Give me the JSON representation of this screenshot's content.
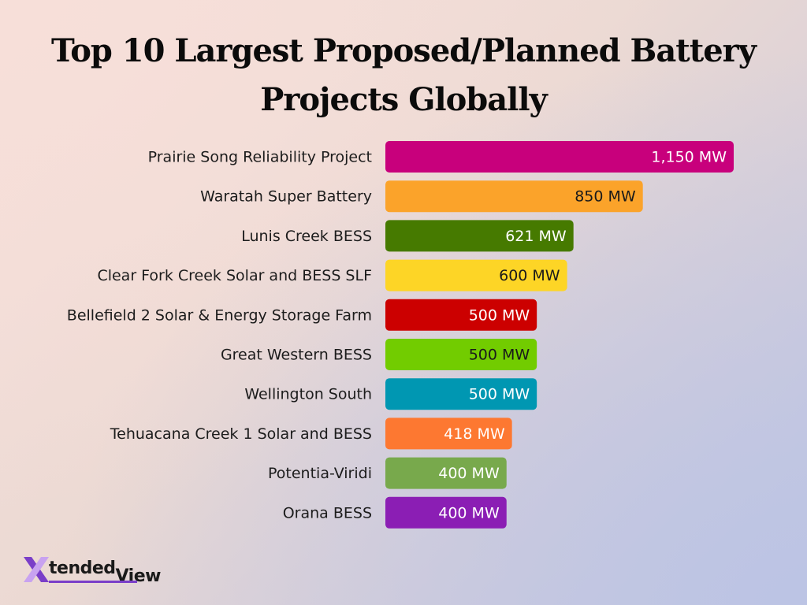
{
  "chart_data": {
    "type": "bar",
    "orientation": "horizontal",
    "title_lines": [
      "Top 10 Largest Proposed/Planned Battery",
      "Projects Globally"
    ],
    "categories": [
      "Prairie Song Reliability Project",
      "Waratah Super Battery",
      "Lunis Creek BESS",
      "Clear Fork Creek Solar and BESS SLF",
      "Bellefield 2 Solar & Energy Storage Farm",
      "Great Western BESS",
      "Wellington South",
      "Tehuacana Creek 1 Solar and BESS",
      "Potentia-Viridi",
      "Orana BESS"
    ],
    "values": [
      1150,
      850,
      621,
      600,
      500,
      500,
      500,
      418,
      400,
      400
    ],
    "value_labels": [
      "1,150 MW",
      "850 MW",
      "621 MW",
      "600 MW",
      "500 MW",
      "500 MW",
      "500 MW",
      "418 MW",
      "400 MW",
      "400 MW"
    ],
    "colors": [
      "#c8007c",
      "#fba32a",
      "#467a00",
      "#fdd526",
      "#cc0000",
      "#72cc00",
      "#0097b2",
      "#fd7831",
      "#78a94c",
      "#8b1eb4"
    ],
    "label_colors": [
      "#ffffff",
      "#1a1a1a",
      "#ffffff",
      "#1a1a1a",
      "#ffffff",
      "#1a1a1a",
      "#ffffff",
      "#ffffff",
      "#ffffff",
      "#ffffff"
    ],
    "unit": "MW",
    "grid": false,
    "legend": "none"
  },
  "logo": {
    "text_part1": "tended",
    "text_part2": "View",
    "colors": [
      "#7a3ec8",
      "#c8a2f0"
    ]
  }
}
